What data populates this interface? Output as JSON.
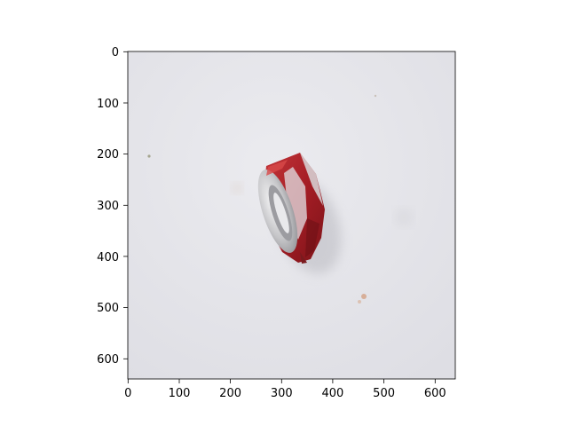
{
  "figure": {
    "background_color": "#ffffff",
    "axes": {
      "x_ticks": [
        "0",
        "100",
        "200",
        "300",
        "400",
        "500",
        "600"
      ],
      "y_ticks": [
        "0",
        "100",
        "200",
        "300",
        "400",
        "500",
        "600"
      ],
      "x_range": [
        0,
        640
      ],
      "y_range": [
        640,
        0
      ],
      "y_axis_inverted": true,
      "grid": false
    },
    "image": {
      "subject": "crushed red aluminum soda can on white surface",
      "background_color": "#e6e6ea",
      "can_red": "#b0232a",
      "can_metal": "#c9c9cc"
    }
  }
}
